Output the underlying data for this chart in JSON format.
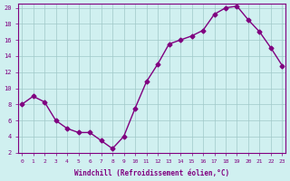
{
  "x": [
    0,
    1,
    2,
    3,
    4,
    5,
    6,
    7,
    8,
    9,
    10,
    11,
    12,
    13,
    14,
    15,
    16,
    17,
    18,
    19,
    20,
    21,
    22,
    23
  ],
  "y": [
    8,
    9,
    8.3,
    6,
    5,
    4.5,
    4.5,
    3.5,
    2.5,
    4,
    7.5,
    10.8,
    13,
    15.5,
    16,
    16.5,
    17.2,
    19.2,
    20,
    20.2,
    18.5,
    17,
    15,
    12.8
  ],
  "line_color": "#800080",
  "marker_color": "#800080",
  "bg_color": "#d0f0f0",
  "grid_color": "#a0c8c8",
  "xlabel": "Windchill (Refroidissement éolien,°C)",
  "ylim": [
    2,
    20
  ],
  "xlim": [
    0,
    23
  ],
  "yticks": [
    2,
    4,
    6,
    8,
    10,
    12,
    14,
    16,
    18,
    20
  ],
  "xticks": [
    0,
    1,
    2,
    3,
    4,
    5,
    6,
    7,
    8,
    9,
    10,
    11,
    12,
    13,
    14,
    15,
    16,
    17,
    18,
    19,
    20,
    21,
    22,
    23
  ],
  "axis_color": "#800080",
  "tick_color": "#800080",
  "font_family": "monospace"
}
